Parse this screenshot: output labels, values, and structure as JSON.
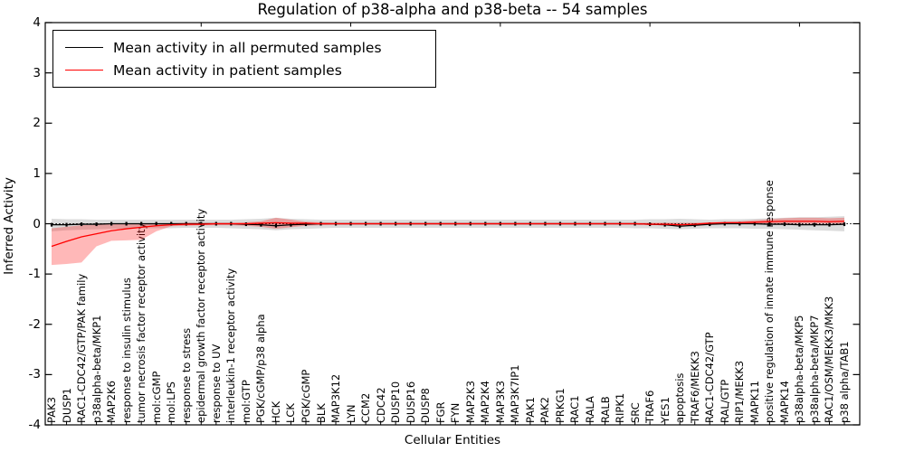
{
  "chart_data": {
    "type": "line",
    "title": "Regulation of p38-alpha and p38-beta -- 54 samples",
    "xlabel": "Cellular Entities",
    "ylabel": "Inferred Activity",
    "ylim": [
      -4,
      4
    ],
    "yticks": [
      "4",
      "3",
      "2",
      "1",
      "0",
      "-1",
      "-2",
      "-3",
      "-4"
    ],
    "ytick_values": [
      4,
      3,
      2,
      1,
      0,
      -1,
      -2,
      -3,
      -4
    ],
    "grid": false,
    "zero_line": true,
    "legend_position": "upper left",
    "categories": [
      "PAK3",
      "DUSP1",
      "RAC1-CDC42/GTP/PAK family",
      "p38alpha-beta/MKP1",
      "MAP2K6",
      "response to insulin stimulus",
      "tumor necrosis factor receptor activity",
      "mol:cGMP",
      "mol:LPS",
      "response to stress",
      "epidermal growth factor receptor activity",
      "response to UV",
      "interleukin-1 receptor activity",
      "mol:GTP",
      "PGK/cGMP/p38 alpha",
      "HCK",
      "LCK",
      "PGK/cGMP",
      "BLK",
      "MAP3K12",
      "LYN",
      "CCM2",
      "CDC42",
      "DUSP10",
      "DUSP16",
      "DUSP8",
      "FGR",
      "FYN",
      "MAP2K3",
      "MAP2K4",
      "MAP3K3",
      "MAP3K7IP1",
      "PAK1",
      "PAK2",
      "PRKG1",
      "RAC1",
      "RALA",
      "RALB",
      "RIPK1",
      "SRC",
      "TRAF6",
      "YES1",
      "apoptosis",
      "TRAF6/MEKK3",
      "RAC1-CDC42/GTP",
      "RAL/GTP",
      "RIP1/MEKK3",
      "MAPK11",
      "positive regulation of innate immune response",
      "MAPK14",
      "p38alpha-beta/MKP5",
      "p38alpha-beta/MKP7",
      "RAC1/OSM/MEKK3/MKK3",
      "p38 alpha/TAB1"
    ],
    "series": [
      {
        "name": "Mean activity in all permuted samples",
        "color": "#000000",
        "marker": true,
        "values": [
          -0.02,
          -0.02,
          -0.01,
          -0.01,
          0,
          0,
          0,
          0,
          0,
          0,
          0,
          0,
          0,
          -0.01,
          -0.02,
          -0.04,
          -0.02,
          -0.01,
          0,
          0,
          0,
          0,
          0,
          0,
          0,
          0,
          0,
          0,
          0,
          0,
          0,
          0,
          0,
          0,
          0,
          0,
          0,
          0,
          0,
          0,
          -0.01,
          -0.02,
          -0.05,
          -0.03,
          -0.01,
          0,
          0,
          0,
          -0.01,
          -0.01,
          -0.02,
          -0.02,
          -0.02,
          -0.01
        ]
      },
      {
        "name": "Mean activity in patient samples",
        "color": "#ff0000",
        "marker": false,
        "values": [
          -0.45,
          -0.35,
          -0.26,
          -0.2,
          -0.14,
          -0.1,
          -0.07,
          -0.04,
          -0.02,
          -0.01,
          -0.01,
          0,
          0,
          0,
          0.01,
          0.02,
          0.01,
          0.01,
          0,
          0,
          0,
          0,
          0,
          0,
          0,
          0,
          0,
          0,
          0,
          0,
          0,
          0,
          0,
          0,
          0,
          0,
          0,
          0,
          0,
          0,
          -0.01,
          -0.01,
          -0.02,
          -0.01,
          0.01,
          0.02,
          0.02,
          0.03,
          0.04,
          0.05,
          0.05,
          0.05,
          0.04,
          0.05
        ]
      }
    ],
    "bands": [
      {
        "name": "permuted samples activity range",
        "color": "#000000",
        "opacity": 0.14,
        "lower": [
          -0.15,
          -0.13,
          -0.12,
          -0.11,
          -0.1,
          -0.1,
          -0.09,
          -0.09,
          -0.09,
          -0.08,
          -0.08,
          -0.08,
          -0.09,
          -0.1,
          -0.11,
          -0.13,
          -0.11,
          -0.1,
          -0.09,
          -0.08,
          -0.08,
          -0.08,
          -0.08,
          -0.08,
          -0.08,
          -0.08,
          -0.08,
          -0.08,
          -0.08,
          -0.08,
          -0.08,
          -0.08,
          -0.08,
          -0.08,
          -0.08,
          -0.08,
          -0.08,
          -0.08,
          -0.08,
          -0.09,
          -0.09,
          -0.1,
          -0.11,
          -0.1,
          -0.09,
          -0.09,
          -0.09,
          -0.1,
          -0.1,
          -0.11,
          -0.12,
          -0.13,
          -0.14,
          -0.15
        ],
        "upper": [
          0.1,
          0.09,
          0.09,
          0.08,
          0.08,
          0.08,
          0.08,
          0.08,
          0.08,
          0.08,
          0.08,
          0.08,
          0.08,
          0.09,
          0.1,
          0.12,
          0.1,
          0.09,
          0.08,
          0.08,
          0.08,
          0.08,
          0.08,
          0.08,
          0.08,
          0.08,
          0.08,
          0.08,
          0.08,
          0.08,
          0.08,
          0.08,
          0.08,
          0.08,
          0.08,
          0.08,
          0.08,
          0.08,
          0.08,
          0.08,
          0.09,
          0.09,
          0.1,
          0.09,
          0.08,
          0.09,
          0.09,
          0.1,
          0.11,
          0.12,
          0.13,
          0.13,
          0.14,
          0.15
        ]
      },
      {
        "name": "patient samples activity range",
        "color": "#ff0000",
        "opacity": 0.28,
        "lower": [
          -0.82,
          -0.8,
          -0.77,
          -0.45,
          -0.34,
          -0.33,
          -0.32,
          -0.15,
          -0.05,
          -0.04,
          -0.03,
          -0.03,
          -0.03,
          -0.04,
          -0.06,
          -0.1,
          -0.07,
          -0.04,
          -0.03,
          -0.02,
          -0.02,
          -0.02,
          -0.02,
          -0.02,
          -0.02,
          -0.02,
          -0.02,
          -0.02,
          -0.02,
          -0.02,
          -0.02,
          -0.02,
          -0.02,
          -0.02,
          -0.02,
          -0.02,
          -0.02,
          -0.02,
          -0.02,
          -0.02,
          -0.02,
          -0.03,
          -0.04,
          -0.02,
          -0.02,
          -0.01,
          -0.01,
          -0.01,
          0,
          0,
          0,
          0,
          0,
          -0.01
        ],
        "upper": [
          -0.09,
          -0.06,
          -0.03,
          -0.02,
          -0.01,
          -0.01,
          0,
          0.01,
          0.01,
          0.02,
          0.02,
          0.02,
          0.02,
          0.03,
          0.05,
          0.12,
          0.08,
          0.04,
          0.03,
          0.02,
          0.02,
          0.02,
          0.02,
          0.02,
          0.02,
          0.02,
          0.02,
          0.02,
          0.02,
          0.02,
          0.02,
          0.02,
          0.02,
          0.02,
          0.02,
          0.02,
          0.02,
          0.02,
          0.02,
          0.02,
          0.02,
          0.02,
          0.02,
          0.02,
          0.03,
          0.04,
          0.05,
          0.07,
          0.09,
          0.11,
          0.12,
          0.12,
          0.11,
          0.12
        ]
      }
    ]
  }
}
